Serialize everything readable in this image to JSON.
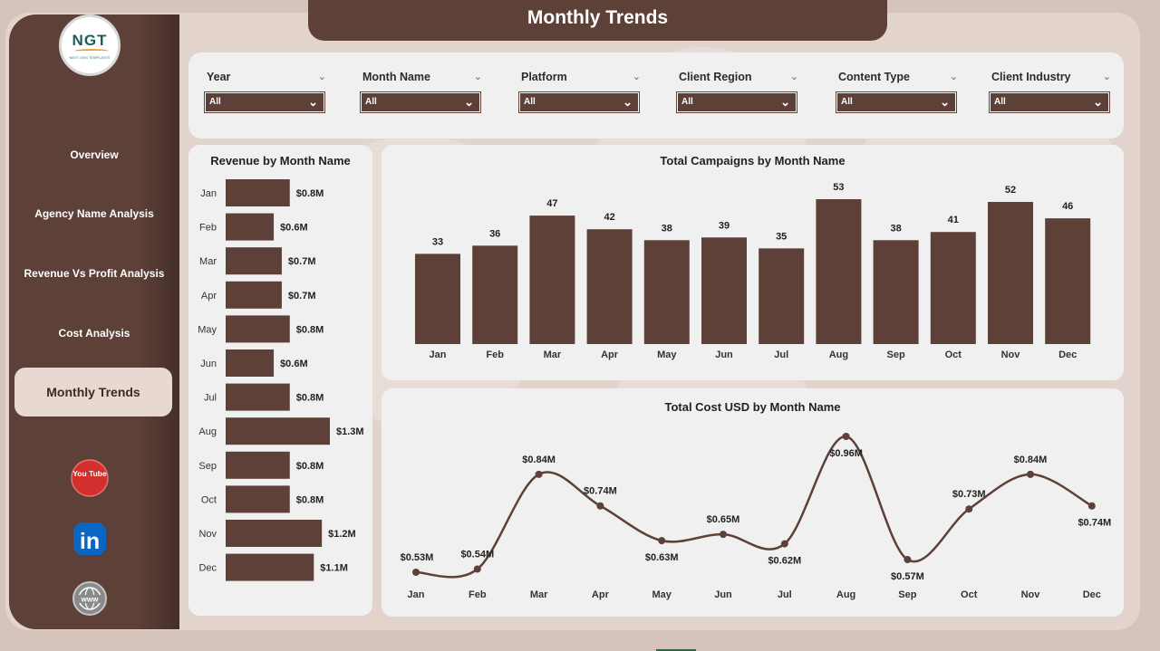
{
  "header": {
    "title": "Monthly Trends"
  },
  "logo": {
    "text": "NGT",
    "subtitle": "NEXT GEN TEMPLATES"
  },
  "sidebar": {
    "items": [
      {
        "label": "Overview",
        "active": false
      },
      {
        "label": "Agency Name Analysis",
        "active": false
      },
      {
        "label": "Revenue Vs Profit Analysis",
        "active": false
      },
      {
        "label": "Cost Analysis",
        "active": false
      },
      {
        "label": "Monthly Trends",
        "active": true
      }
    ],
    "social": [
      {
        "name": "youtube-icon",
        "label": "You Tube",
        "color": "#d32f2f"
      },
      {
        "name": "linkedin-icon",
        "label": "in",
        "color": "#0a66c2"
      },
      {
        "name": "website-icon",
        "label": "www",
        "color": "#8a8a8a"
      }
    ]
  },
  "filters": [
    {
      "label": "Year",
      "value": "All"
    },
    {
      "label": "Month Name",
      "value": "All"
    },
    {
      "label": "Platform",
      "value": "All"
    },
    {
      "label": "Client Region",
      "value": "All"
    },
    {
      "label": "Content Type",
      "value": "All"
    },
    {
      "label": "Client Industry",
      "value": "All"
    }
  ],
  "colors": {
    "accent": "#5d4037",
    "panel": "#f0f0f0",
    "background": "#d6c3bc"
  },
  "chart_data": [
    {
      "id": "revenue",
      "type": "bar",
      "orientation": "horizontal",
      "title": "Revenue by Month Name",
      "categories": [
        "Jan",
        "Feb",
        "Mar",
        "Apr",
        "May",
        "Jun",
        "Jul",
        "Aug",
        "Sep",
        "Oct",
        "Nov",
        "Dec"
      ],
      "values": [
        0.8,
        0.6,
        0.7,
        0.7,
        0.8,
        0.6,
        0.8,
        1.3,
        0.8,
        0.8,
        1.2,
        1.1
      ],
      "labels": [
        "$0.8M",
        "$0.6M",
        "$0.7M",
        "$0.7M",
        "$0.8M",
        "$0.6M",
        "$0.8M",
        "$1.3M",
        "$0.8M",
        "$0.8M",
        "$1.2M",
        "$1.1M"
      ],
      "unit": "USD millions",
      "xlim": [
        0,
        1.3
      ]
    },
    {
      "id": "campaigns",
      "type": "bar",
      "title": "Total Campaigns by Month Name",
      "categories": [
        "Jan",
        "Feb",
        "Mar",
        "Apr",
        "May",
        "Jun",
        "Jul",
        "Aug",
        "Sep",
        "Oct",
        "Nov",
        "Dec"
      ],
      "values": [
        33,
        36,
        47,
        42,
        38,
        39,
        35,
        53,
        38,
        41,
        52,
        46
      ],
      "ylim": [
        0,
        53
      ]
    },
    {
      "id": "cost",
      "type": "line",
      "title": "Total Cost USD by Month Name",
      "categories": [
        "Jan",
        "Feb",
        "Mar",
        "Apr",
        "May",
        "Jun",
        "Jul",
        "Aug",
        "Sep",
        "Oct",
        "Nov",
        "Dec"
      ],
      "values": [
        0.53,
        0.54,
        0.84,
        0.74,
        0.63,
        0.65,
        0.62,
        0.96,
        0.57,
        0.73,
        0.84,
        0.74
      ],
      "labels": [
        "$0.53M",
        "$0.54M",
        "$0.84M",
        "$0.74M",
        "$0.63M",
        "$0.65M",
        "$0.62M",
        "$0.96M",
        "$0.57M",
        "$0.73M",
        "$0.84M",
        "$0.74M"
      ],
      "unit": "USD millions",
      "ylim": [
        0.53,
        0.96
      ]
    }
  ]
}
